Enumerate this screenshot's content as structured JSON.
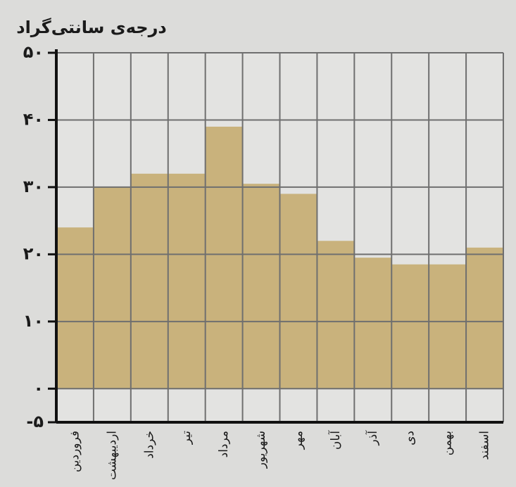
{
  "chart_data": {
    "type": "bar",
    "ylabel": "درجه‌ی سانتی‌گراد",
    "categories": [
      "فروردین",
      "اردیبهشت",
      "خرداد",
      "تیر",
      "مرداد",
      "شهریور",
      "مهر",
      "آبان",
      "آذر",
      "دی",
      "بهمن",
      "اسفند"
    ],
    "values": [
      24,
      30,
      32,
      32,
      39,
      30.5,
      29,
      22,
      19.5,
      18.5,
      18.5,
      21
    ],
    "color": "#c9b27c",
    "ylim": [
      -5,
      50
    ],
    "yticks": [
      {
        "value": -5,
        "label": "-۵"
      },
      {
        "value": 0,
        "label": "۰"
      },
      {
        "value": 10,
        "label": "۱۰"
      },
      {
        "value": 20,
        "label": "۲۰"
      },
      {
        "value": 30,
        "label": "۳۰"
      },
      {
        "value": 40,
        "label": "۴۰"
      },
      {
        "value": 50,
        "label": "۵۰"
      }
    ],
    "grid": true
  }
}
